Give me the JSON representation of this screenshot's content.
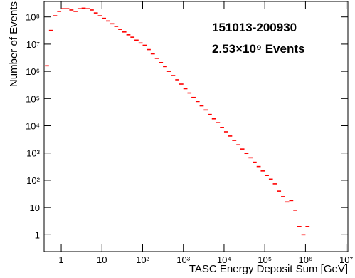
{
  "chart_data": {
    "type": "histogram",
    "xlabel": "TASC Energy Deposit Sum [GeV]",
    "ylabel": "Number of Events",
    "annotations": [
      "151013-200930",
      "2.53×10⁹ Events"
    ],
    "log_x": true,
    "log_y": true,
    "color": "#ff0000",
    "xlim": [
      0.38,
      11000000
    ],
    "ylim": [
      0.24,
      370000000
    ],
    "xticks": [
      1,
      10,
      {
        "value": 100,
        "label": "10²"
      },
      {
        "value": 1000,
        "label": "10³"
      },
      {
        "value": 10000,
        "label": "10⁴"
      },
      {
        "value": 100000,
        "label": "10⁵"
      },
      {
        "value": 1000000,
        "label": "10⁶"
      },
      {
        "value": 10000000,
        "label": "10⁷"
      }
    ],
    "yticks": [
      1,
      10,
      {
        "value": 100,
        "label": "10²"
      },
      {
        "value": 1000,
        "label": "10³"
      },
      {
        "value": 10000,
        "label": "10⁴"
      },
      {
        "value": 100000,
        "label": "10⁵"
      },
      {
        "value": 1000000,
        "label": "10⁶"
      },
      {
        "value": 10000000,
        "label": "10⁷"
      },
      {
        "value": 100000000,
        "label": "10⁸"
      }
    ],
    "bins": [
      0.398,
      0.501,
      0.631,
      0.794,
      1,
      1.26,
      1.58,
      2,
      2.51,
      3.16,
      3.98,
      5.01,
      6.31,
      7.94,
      10,
      12.6,
      15.8,
      20,
      25.1,
      31.6,
      39.8,
      50.1,
      63.1,
      79.4,
      100,
      126,
      158,
      200,
      251,
      316,
      398,
      501,
      631,
      794,
      1000,
      1260,
      1580,
      2000,
      2510,
      3160,
      3980,
      5010,
      6310,
      7940,
      10000,
      12600,
      15800,
      20000,
      25100,
      31600,
      39800,
      50100,
      63100,
      79400,
      100000,
      126000,
      158000,
      200000,
      251000,
      316000,
      398000,
      501000,
      631000,
      794000,
      1000000,
      1260000
    ],
    "values": [
      1600000,
      32000000,
      110000000,
      160000000,
      200000000,
      200000000,
      180000000,
      160000000,
      200000000,
      210000000,
      200000000,
      180000000,
      140000000,
      110000000,
      89000000,
      71000000,
      56000000,
      45000000,
      35000000,
      28000000,
      22000000,
      18000000,
      14000000,
      11000000,
      9100000,
      6300000,
      4400000,
      3000000,
      2100000,
      1500000,
      1000000,
      700000,
      490000,
      340000,
      230000,
      160000,
      110000,
      78000,
      54000,
      38000,
      26000,
      18000,
      13000,
      8700,
      6000,
      4200,
      2900,
      2000,
      1400,
      970,
      670,
      460,
      320,
      220,
      150,
      110,
      74,
      40,
      25,
      16,
      18,
      8,
      2,
      1,
      2
    ]
  }
}
